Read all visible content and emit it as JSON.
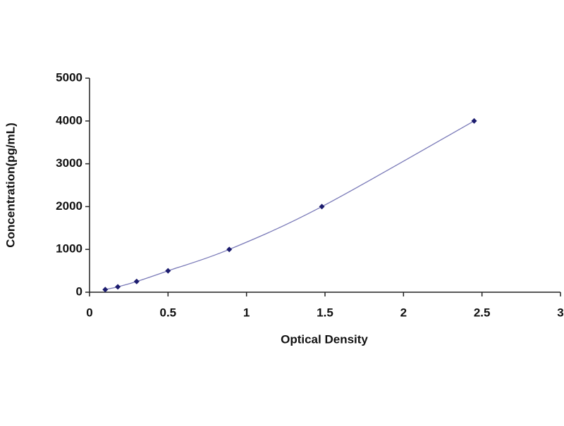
{
  "chart_data": {
    "type": "scatter-line",
    "x_label": "Optical Density",
    "y_label": "Concentration(pg/mL)",
    "x": [
      0.1,
      0.18,
      0.3,
      0.5,
      0.89,
      1.48,
      2.45
    ],
    "values": [
      62.5,
      125,
      250,
      500,
      1000,
      2000,
      4000
    ],
    "color": "#1c1c6e",
    "line_color": "#7a7ab8",
    "xlim": [
      0,
      3
    ],
    "xticks": [
      0,
      0.5,
      1,
      1.5,
      2,
      2.5,
      3
    ],
    "ylim": [
      0,
      5000
    ],
    "yticks": [
      0,
      1000,
      2000,
      3000,
      4000,
      5000
    ],
    "grid": false
  }
}
